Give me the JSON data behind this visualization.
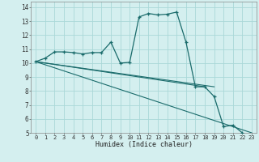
{
  "xlabel": "Humidex (Indice chaleur)",
  "background_color": "#d4efef",
  "grid_color": "#aad8d8",
  "line_color": "#1a6b6b",
  "xlim": [
    -0.5,
    23.5
  ],
  "ylim": [
    5,
    14.4
  ],
  "xtick_values": [
    0,
    1,
    2,
    3,
    4,
    5,
    6,
    7,
    8,
    9,
    10,
    11,
    12,
    13,
    14,
    15,
    16,
    17,
    18,
    19,
    20,
    21,
    22,
    23
  ],
  "ytick_values": [
    5,
    6,
    7,
    8,
    9,
    10,
    11,
    12,
    13,
    14
  ],
  "main_curve": {
    "x": [
      0,
      1,
      2,
      3,
      4,
      5,
      6,
      7,
      8,
      9,
      10,
      11,
      12,
      13,
      14,
      15,
      16,
      17,
      18,
      19,
      20,
      21,
      22
    ],
    "y": [
      10.1,
      10.35,
      10.8,
      10.8,
      10.75,
      10.65,
      10.75,
      10.75,
      11.5,
      10.0,
      10.05,
      13.3,
      13.55,
      13.45,
      13.5,
      13.65,
      11.5,
      8.3,
      8.3,
      7.6,
      5.45,
      5.55,
      5.0
    ]
  },
  "ref_lines": [
    {
      "x": [
        0,
        18
      ],
      "y": [
        10.1,
        8.3
      ]
    },
    {
      "x": [
        0,
        19
      ],
      "y": [
        10.1,
        8.3
      ]
    },
    {
      "x": [
        0,
        23
      ],
      "y": [
        10.1,
        5.0
      ]
    }
  ]
}
